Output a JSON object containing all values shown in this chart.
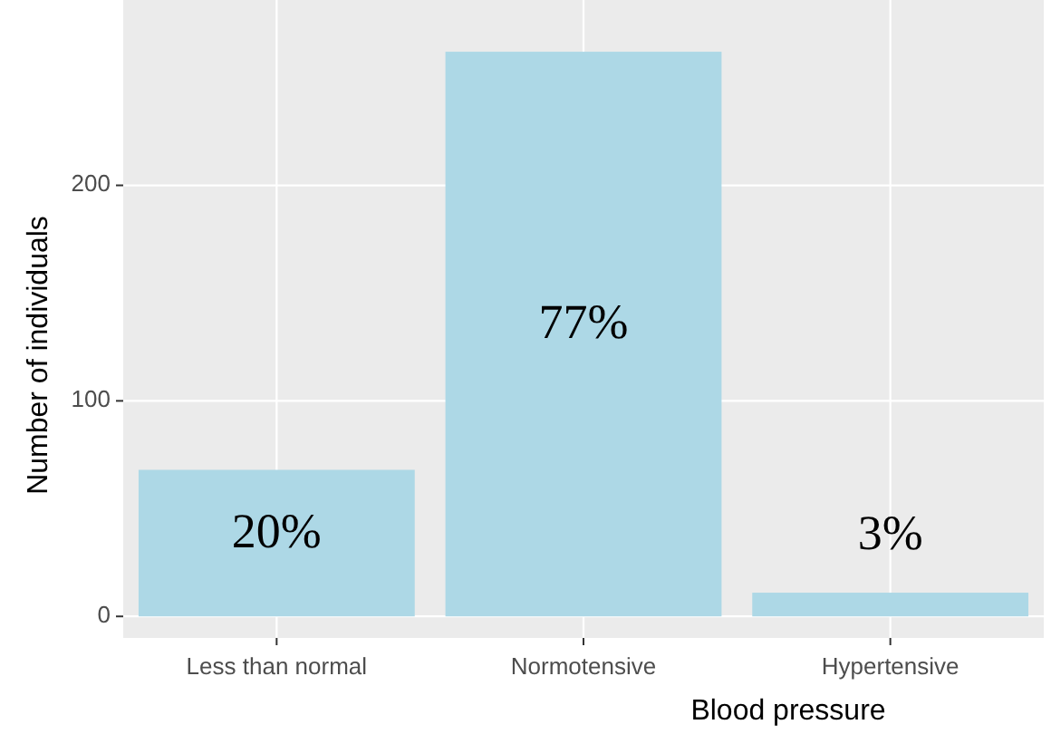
{
  "chart_data": {
    "type": "bar",
    "xlabel": "Blood pressure",
    "ylabel": "Number of individuals",
    "categories": [
      "Less than normal",
      "Normotensive",
      "Hypertensive"
    ],
    "values": [
      68,
      262,
      11
    ],
    "color": "#add8e6",
    "ylim": [
      -10,
      286
    ],
    "yticks": [
      0,
      100,
      200
    ],
    "grid": true,
    "annotations": [
      "20%",
      "77%",
      "3%"
    ]
  }
}
